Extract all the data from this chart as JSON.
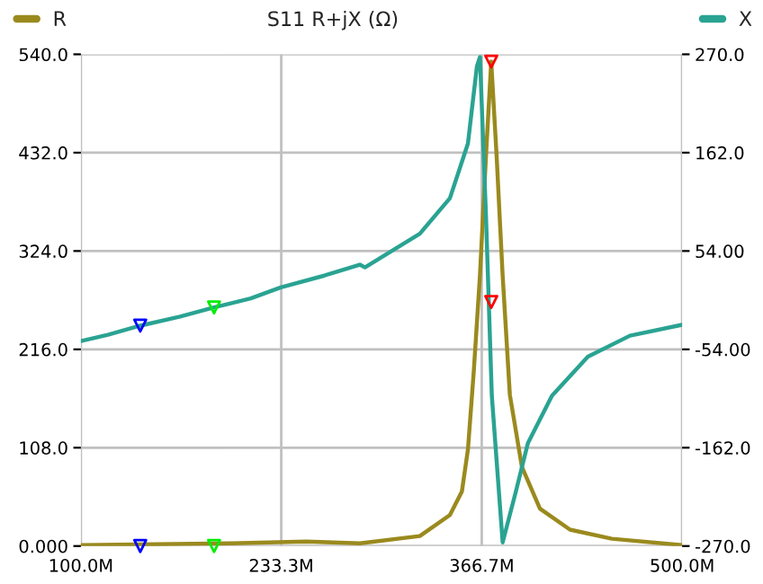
{
  "chart_data": {
    "type": "line",
    "title": "S11 R+jX (Ω)",
    "legend": "top",
    "grid": true,
    "marker": "none",
    "line_style": "solid",
    "xlim": [
      100,
      500
    ],
    "xticks": [
      {
        "value": 100,
        "label": "100.0M"
      },
      {
        "value": 233.3,
        "label": "233.3M"
      },
      {
        "value": 366.7,
        "label": "366.7M"
      },
      {
        "value": 500,
        "label": "500.0M"
      }
    ],
    "ylim": [
      0,
      540
    ],
    "yticks": [
      {
        "value": 0,
        "label": "0.000"
      },
      {
        "value": 108,
        "label": "108.0"
      },
      {
        "value": 216,
        "label": "216.0"
      },
      {
        "value": 324,
        "label": "324.0"
      },
      {
        "value": 432,
        "label": "432.0"
      },
      {
        "value": 540,
        "label": "540.0"
      }
    ],
    "y2lim": [
      -270,
      270
    ],
    "y2ticks": [
      {
        "value": -270,
        "label": "-270.0"
      },
      {
        "value": -162,
        "label": "-162.0"
      },
      {
        "value": -54,
        "label": "-54.00"
      },
      {
        "value": 54,
        "label": "54.00"
      },
      {
        "value": 162,
        "label": "162.0"
      },
      {
        "value": 270,
        "label": "270.0"
      }
    ],
    "series": [
      {
        "name": "R",
        "color": "#9a8a1e",
        "x": [
          100,
          150,
          200,
          250,
          285.6,
          325.5,
          345.5,
          353.5,
          357.5,
          361.4,
          365.5,
          369.5,
          373,
          376.6,
          380.6,
          385.4,
          393.4,
          405.4,
          425.4,
          453.2,
          500
        ],
        "values": [
          1,
          2,
          3,
          5,
          3,
          11,
          34,
          60,
          106,
          192,
          297,
          428,
          532,
          428,
          297,
          166,
          87,
          41,
          18,
          8,
          1
        ]
      },
      {
        "name": "X",
        "color": "#2aa392",
        "axis": "y2",
        "x": [
          100,
          118,
          139.5,
          166,
          188.6,
          213,
          233,
          262,
          285.6,
          289,
          325.5,
          345.5,
          357.5,
          363.5,
          365.5,
          369.5,
          373.4,
          380.6,
          389.4,
          397.4,
          413.4,
          437.3,
          465.3,
          500
        ],
        "values": [
          -45,
          -38,
          -28,
          -18,
          -8,
          2,
          14,
          27,
          39,
          36,
          73,
          112,
          172,
          257,
          267,
          93,
          -105,
          -266,
          -210,
          -157,
          -105,
          -62,
          -39,
          -27
        ]
      },
      {
        "type": "scatter",
        "color": "#0000ff",
        "marker": "triangle",
        "x": [
          139.5
        ],
        "values": [
          0
        ]
      },
      {
        "type": "scatter",
        "color": "#0000ff",
        "marker": "triangle",
        "axis": "y2",
        "x": [
          139.5
        ],
        "values": [
          -28
        ]
      },
      {
        "type": "scatter",
        "color": "#00ee00",
        "marker": "triangle",
        "x": [
          188.6
        ],
        "values": [
          0
        ]
      },
      {
        "type": "scatter",
        "color": "#00ee00",
        "marker": "triangle",
        "axis": "y2",
        "x": [
          188.6
        ],
        "values": [
          -8
        ]
      },
      {
        "type": "scatter",
        "color": "#ff0000",
        "marker": "triangle",
        "x": [
          373
        ],
        "values": [
          532
        ]
      },
      {
        "type": "scatter",
        "color": "#ff0000",
        "marker": "triangle",
        "axis": "y2",
        "x": [
          373
        ],
        "values": [
          -2
        ]
      }
    ]
  }
}
